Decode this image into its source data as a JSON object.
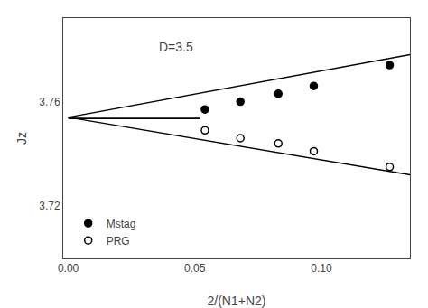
{
  "chart_data": {
    "type": "scatter",
    "xlabel": "2/(N1+N2)",
    "ylabel": "Jz",
    "xlim": [
      -0.002,
      0.135
    ],
    "ylim": [
      3.7,
      3.792
    ],
    "xticks": [
      {
        "value": 0,
        "label": "0.00"
      },
      {
        "value": 0.05,
        "label": "0.05"
      },
      {
        "value": 0.1,
        "label": "0.10"
      }
    ],
    "yticks": [
      3.72,
      3.76
    ],
    "grid": false,
    "legend": "lower left",
    "series": [
      {
        "type": "line",
        "color": "#000000",
        "x": [
          0.0,
          0.135
        ],
        "values": [
          3.754,
          3.778
        ]
      },
      {
        "type": "line",
        "color": "#000000",
        "x": [
          0.0,
          0.135
        ],
        "values": [
          3.754,
          3.732
        ]
      },
      {
        "type": "line",
        "color": "#000000",
        "x": [
          0.0,
          0.052
        ],
        "values": [
          3.754,
          3.754
        ]
      },
      {
        "type": "line",
        "color": "#000000",
        "x": [
          0.0,
          0.052
        ],
        "values": [
          3.7535,
          3.7535
        ]
      },
      {
        "type": "scatter",
        "name": "Mstag",
        "color": "#000000",
        "marker": "filled circle",
        "x": [
          0.054,
          0.068,
          0.083,
          0.097,
          0.127
        ],
        "values": [
          3.757,
          3.76,
          3.763,
          3.766,
          3.774
        ]
      },
      {
        "type": "scatter",
        "name": "PRG",
        "color": "#000000",
        "marker": "open circle",
        "x": [
          0.054,
          0.068,
          0.083,
          0.097,
          0.127
        ],
        "values": [
          3.749,
          3.746,
          3.744,
          3.741,
          3.735
        ]
      }
    ],
    "annotations": [
      {
        "text": "D=3.5",
        "x": 0.035,
        "y": 3.781
      }
    ]
  }
}
